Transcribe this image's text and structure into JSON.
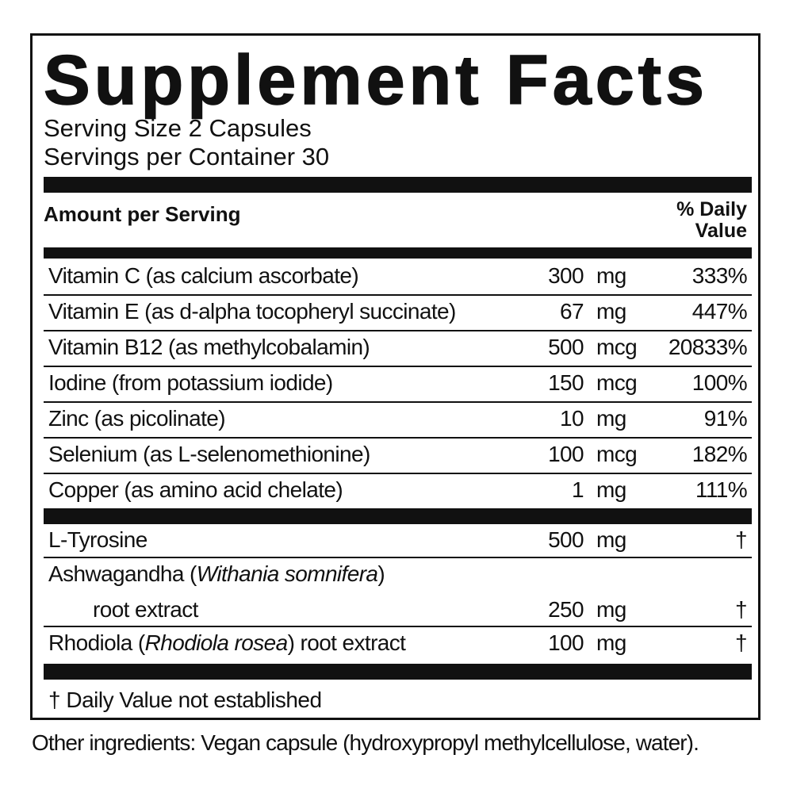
{
  "title": "Supplement Facts",
  "serving_size": "Serving Size 2 Capsules",
  "servings_per_container": "Servings per Container 30",
  "header": {
    "amount": "Amount per Serving",
    "dv_line1": "% Daily",
    "dv_line2": "Value"
  },
  "rows": [
    {
      "name": "Vitamin C (as calcium ascorbate)",
      "amount": "300",
      "unit": "mg",
      "dv": "333%"
    },
    {
      "name": "Vitamin E (as d-alpha tocopheryl succinate)",
      "amount": "67",
      "unit": "mg",
      "dv": "447%"
    },
    {
      "name": "Vitamin B12 (as methylcobalamin)",
      "amount": "500",
      "unit": "mcg",
      "dv": "20833%"
    },
    {
      "name": "Iodine (from potassium iodide)",
      "amount": "150",
      "unit": "mcg",
      "dv": "100%"
    },
    {
      "name": "Zinc (as picolinate)",
      "amount": "10",
      "unit": "mg",
      "dv": "91%"
    },
    {
      "name": "Selenium (as L-selenomethionine)",
      "amount": "100",
      "unit": "mcg",
      "dv": "182%"
    },
    {
      "name": "Copper (as amino acid chelate)",
      "amount": "1",
      "unit": "mg",
      "dv": "111%"
    }
  ],
  "others": [
    {
      "name": "L-Tyrosine",
      "amount": "500",
      "unit": "mg",
      "dv": "†"
    },
    {
      "name_a": "Ashwagandha (",
      "name_italic": "Withania somnifera",
      "name_b": ")",
      "name_line2": "root extract",
      "amount": "250",
      "unit": "mg",
      "dv": "†"
    },
    {
      "name_a": "Rhodiola (",
      "name_italic": "Rhodiola rosea",
      "name_b": ") root extract",
      "amount": "100",
      "unit": "mg",
      "dv": "†"
    }
  ],
  "footnote": "†  Daily Value not established",
  "other_ingredients": "Other ingredients: Vegan capsule (hydroxypropyl methylcellulose, water)."
}
